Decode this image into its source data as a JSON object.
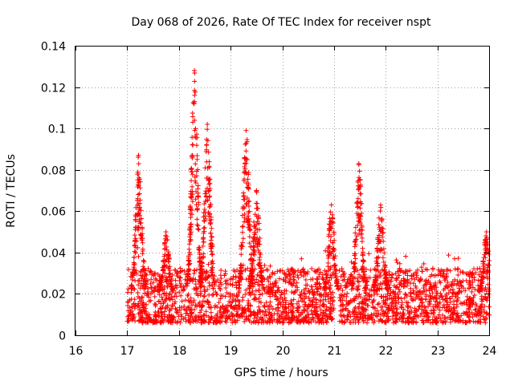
{
  "chart_data": {
    "type": "scatter",
    "title": "Day 068 of 2026, Rate Of TEC Index for receiver nspt",
    "xlabel": "GPS time / hours",
    "ylabel": "ROTI / TECUs",
    "xlim": [
      16,
      24
    ],
    "ylim": [
      0,
      0.14
    ],
    "xticks": [
      "16",
      "17",
      "18",
      "19",
      "20",
      "21",
      "22",
      "23",
      "24"
    ],
    "yticks": [
      "0",
      "0.02",
      "0.04",
      "0.06",
      "0.08",
      "0.1",
      "0.12",
      "0.14"
    ],
    "grid": true,
    "marker": "+",
    "color": "#ff0000",
    "series": [
      {
        "name": "ROTI",
        "description": "dense cloud 0.005-0.03 TECU from 17.0h to 24.0h with bursts",
        "baseline_band": [
          0.006,
          0.03
        ],
        "bursts": [
          {
            "t": 17.22,
            "peak": 0.087
          },
          {
            "t": 17.75,
            "peak": 0.05
          },
          {
            "t": 18.3,
            "peak": 0.128
          },
          {
            "t": 18.55,
            "peak": 0.102
          },
          {
            "t": 19.3,
            "peak": 0.099
          },
          {
            "t": 19.5,
            "peak": 0.07
          },
          {
            "t": 20.95,
            "peak": 0.063
          },
          {
            "t": 21.48,
            "peak": 0.083
          },
          {
            "t": 21.9,
            "peak": 0.063
          },
          {
            "t": 23.95,
            "peak": 0.05
          }
        ]
      }
    ]
  }
}
